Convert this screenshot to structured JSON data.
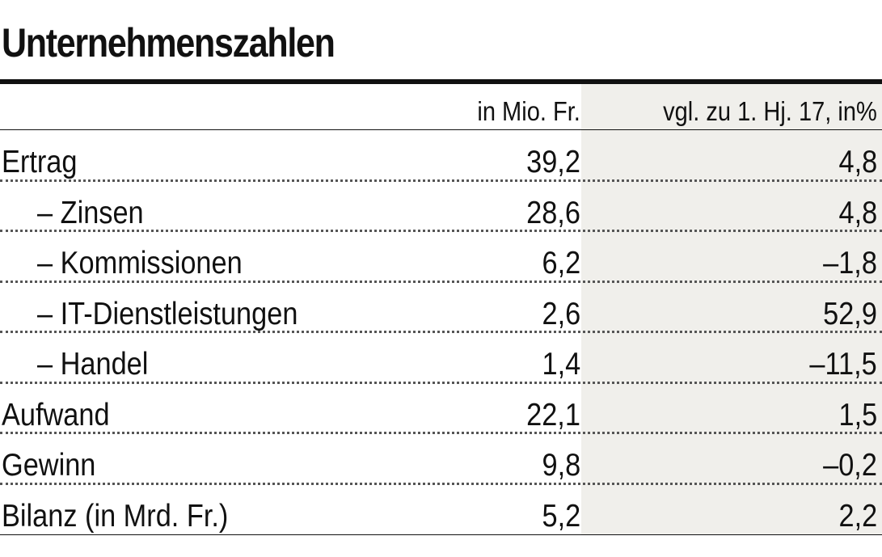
{
  "title": "Unternehmenszahlen",
  "chart_data": {
    "type": "table",
    "title": "Unternehmenszahlen",
    "columns": [
      "",
      "in Mio. Fr.",
      "vgl. zu 1. Hj. 17, in%"
    ],
    "rows": [
      {
        "label": "Ertrag",
        "indent": false,
        "value": "39,2",
        "change": "4,8"
      },
      {
        "label": "– Zinsen",
        "indent": true,
        "value": "28,6",
        "change": "4,8"
      },
      {
        "label": "– Kommissionen",
        "indent": true,
        "value": "6,2",
        "change": "–1,8"
      },
      {
        "label": "– IT-Dienstleistungen",
        "indent": true,
        "value": "2,6",
        "change": "52,9"
      },
      {
        "label": "– Handel",
        "indent": true,
        "value": "1,4",
        "change": "–11,5"
      },
      {
        "label": "Aufwand",
        "indent": false,
        "value": "22,1",
        "change": "1,5"
      },
      {
        "label": "Gewinn",
        "indent": false,
        "value": "9,8",
        "change": "–0,2"
      },
      {
        "label": "Bilanz (in Mrd. Fr.)",
        "indent": false,
        "value": "5,2",
        "change": "2,2"
      }
    ]
  },
  "colors": {
    "text": "#111111",
    "shaded_column": "#f0efeb"
  }
}
